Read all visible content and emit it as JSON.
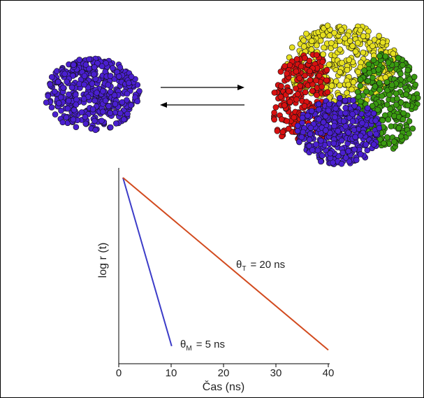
{
  "chart_data": {
    "type": "line",
    "x_label": "Čas (ns)",
    "y_label": "log r (t)",
    "xlim": [
      0,
      40
    ],
    "xticks": [
      0,
      10,
      20,
      30,
      40
    ],
    "ylim": [
      0,
      1
    ],
    "series": [
      {
        "color": "#3c3cc8",
        "x": [
          0.8,
          10.1
        ],
        "values": [
          0.95,
          0.09
        ]
      },
      {
        "color": "#d24a1e",
        "x": [
          0.8,
          40
        ],
        "values": [
          0.95,
          0.07
        ]
      }
    ],
    "annotations": [
      {
        "symbol": "θ",
        "sub": "M",
        "text": "= 5 ns"
      },
      {
        "symbol": "θ",
        "sub": "T",
        "text": "= 20 ns"
      }
    ]
  }
}
